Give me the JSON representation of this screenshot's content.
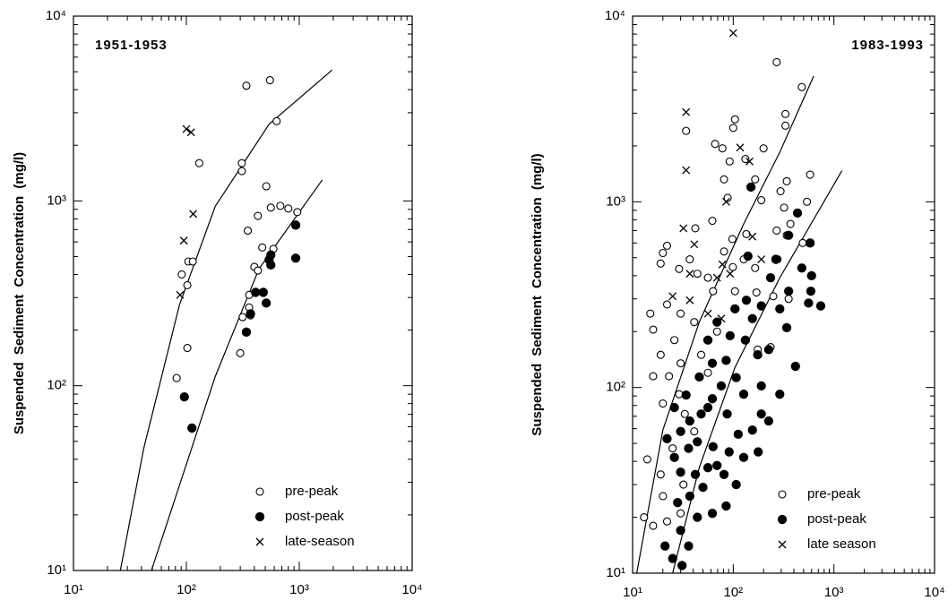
{
  "chart_data": [
    {
      "type": "scatter",
      "xscale": "log",
      "yscale": "log",
      "annotation": "1951-1953",
      "annotation_position": "upper left",
      "ylabel": "Suspended Sediment Concentration (mg/l)",
      "xlim": [
        10,
        10000
      ],
      "ylim": [
        10,
        10000
      ],
      "xticks": [
        {
          "value": 10,
          "label": "10¹"
        },
        {
          "value": 100,
          "label": "10²"
        },
        {
          "value": 1000,
          "label": "10³"
        },
        {
          "value": 10000,
          "label": "10⁴"
        }
      ],
      "yticks": [
        {
          "value": 10,
          "label": "10¹"
        },
        {
          "value": 100,
          "label": "10²"
        },
        {
          "value": 1000,
          "label": "10³"
        },
        {
          "value": 10000,
          "label": "10⁴"
        }
      ],
      "legend": "lower right",
      "series": [
        {
          "name": "pre-peak",
          "color": "#000000",
          "marker": "open",
          "x": [
            340,
            550,
            630,
            130,
            310,
            310,
            510,
            430,
            560,
            680,
            800,
            960,
            350,
            470,
            590,
            400,
            430,
            104,
            114,
            91,
            102,
            360,
            315,
            370,
            360,
            300,
            102,
            82
          ],
          "values": [
            4200,
            4500,
            2700,
            1600,
            1600,
            1450,
            1200,
            830,
            920,
            940,
            910,
            870,
            690,
            560,
            550,
            440,
            420,
            470,
            470,
            400,
            350,
            310,
            235,
            240,
            265,
            150,
            160,
            110
          ]
        },
        {
          "name": "post-peak",
          "color": "#000000",
          "marker": "filled",
          "x": [
            930,
            560,
            540,
            560,
            930,
            410,
            510,
            480,
            370,
            340,
            96,
            112
          ],
          "values": [
            740,
            510,
            480,
            450,
            490,
            320,
            280,
            320,
            245,
            195,
            87,
            59
          ]
        },
        {
          "name": "late-season",
          "color": "#000000",
          "marker": "cross",
          "x": [
            100,
            110,
            115,
            95,
            88
          ],
          "values": [
            2450,
            2350,
            850,
            610,
            310
          ]
        }
      ],
      "fit_lines": [
        {
          "x": [
            26,
            42,
            87,
            180,
            540,
            1950
          ],
          "values": [
            10,
            46,
            275,
            935,
            2600,
            5100
          ]
        },
        {
          "x": [
            49,
            87,
            180,
            440,
            1600
          ],
          "values": [
            10,
            29,
            112,
            430,
            1300
          ]
        }
      ]
    },
    {
      "type": "scatter",
      "xscale": "log",
      "yscale": "log",
      "annotation": "1983-1993",
      "annotation_position": "upper right",
      "ylabel": "Suspended Sediment Concentration (mg/l)",
      "xlim": [
        10,
        10000
      ],
      "ylim": [
        10,
        10000
      ],
      "xticks": [
        {
          "value": 10,
          "label": "10¹"
        },
        {
          "value": 100,
          "label": "10²"
        },
        {
          "value": 1000,
          "label": "10³"
        },
        {
          "value": 10000,
          "label": "10⁴"
        }
      ],
      "yticks": [
        {
          "value": 10,
          "label": "10¹"
        },
        {
          "value": 100,
          "label": "10²"
        },
        {
          "value": 1000,
          "label": "10³"
        },
        {
          "value": 10000,
          "label": "10⁴"
        }
      ],
      "legend": "lower right",
      "series": [
        {
          "name": "pre-peak",
          "color": "#000000",
          "marker": "open",
          "x": [
            270,
            480,
            330,
            330,
            34,
            104,
            100,
            66,
            78,
            92,
            132,
            200,
            340,
            190,
            295,
            540,
            370,
            270,
            340,
            490,
            320,
            81,
            88,
            165,
            62,
            135,
            98,
            81,
            127,
            165,
            99,
            42,
            22,
            20,
            19,
            29,
            37,
            44,
            56,
            63,
            104,
            170,
            355,
            250,
            15,
            22,
            30,
            41,
            16,
            26,
            19,
            30,
            23,
            16,
            29,
            20,
            33,
            41,
            25,
            14,
            19,
            32,
            20,
            30,
            13,
            16,
            22,
            56,
            48,
            69,
            175,
            235,
            580,
            275
          ],
          "values": [
            5650,
            4150,
            2970,
            2570,
            2410,
            2780,
            2500,
            2050,
            1940,
            1650,
            1700,
            1940,
            1290,
            1020,
            1140,
            1000,
            760,
            700,
            660,
            600,
            930,
            1320,
            1050,
            1320,
            790,
            670,
            630,
            540,
            490,
            440,
            445,
            720,
            580,
            530,
            465,
            435,
            490,
            410,
            390,
            330,
            330,
            325,
            300,
            310,
            250,
            280,
            250,
            225,
            205,
            180,
            150,
            135,
            115,
            115,
            92,
            82,
            72,
            58,
            47,
            41,
            34,
            30,
            26,
            21,
            20,
            18,
            19,
            120,
            150,
            200,
            160,
            165,
            1400,
            490
          ]
        },
        {
          "name": "post-peak",
          "color": "#000000",
          "marker": "filled",
          "x": [
            150,
            435,
            355,
            480,
            580,
            355,
            560,
            340,
            235,
            190,
            155,
            135,
            104,
            225,
            175,
            132,
            93,
            69,
            56,
            85,
            107,
            76,
            62,
            87,
            48,
            37,
            30,
            44,
            63,
            91,
            127,
            177,
            112,
            155,
            225,
            290,
            190,
            415,
            36,
            26,
            30,
            42,
            56,
            81,
            107,
            50,
            37,
            28,
            44,
            62,
            85,
            30,
            36,
            25,
            31,
            21,
            22,
            26,
            34,
            46,
            62,
            140,
            265,
            590,
            740,
            600,
            290,
            69,
            127,
            190,
            56
          ],
          "values": [
            1200,
            870,
            660,
            440,
            600,
            330,
            285,
            210,
            390,
            275,
            235,
            295,
            265,
            160,
            150,
            180,
            190,
            225,
            180,
            140,
            113,
            102,
            87,
            72,
            72,
            66,
            58,
            51,
            48,
            45,
            42,
            45,
            56,
            59,
            66,
            92,
            102,
            130,
            47,
            42,
            35,
            34,
            37,
            34,
            30,
            29,
            26,
            24,
            20,
            21,
            23,
            17,
            14,
            12,
            11,
            14,
            53,
            78,
            91,
            114,
            135,
            510,
            490,
            330,
            275,
            400,
            265,
            38,
            92,
            72,
            78
          ]
        },
        {
          "name": "late season",
          "color": "#000000",
          "marker": "cross",
          "x": [
            100,
            34,
            34,
            117,
            145,
            85,
            41,
            32,
            78,
            93,
            69,
            37,
            155,
            25,
            37,
            56,
            76,
            190
          ],
          "values": [
            8100,
            3040,
            1480,
            1960,
            1650,
            1000,
            590,
            720,
            460,
            410,
            390,
            410,
            650,
            310,
            295,
            250,
            235,
            490
          ]
        }
      ],
      "fit_lines": [
        {
          "x": [
            11,
            20,
            46,
            127,
            290,
            630
          ],
          "values": [
            10,
            59,
            225,
            760,
            1850,
            4750
          ]
        },
        {
          "x": [
            25,
            46,
            104,
            290,
            1200
          ],
          "values": [
            10,
            37,
            128,
            390,
            1470
          ]
        }
      ]
    }
  ]
}
